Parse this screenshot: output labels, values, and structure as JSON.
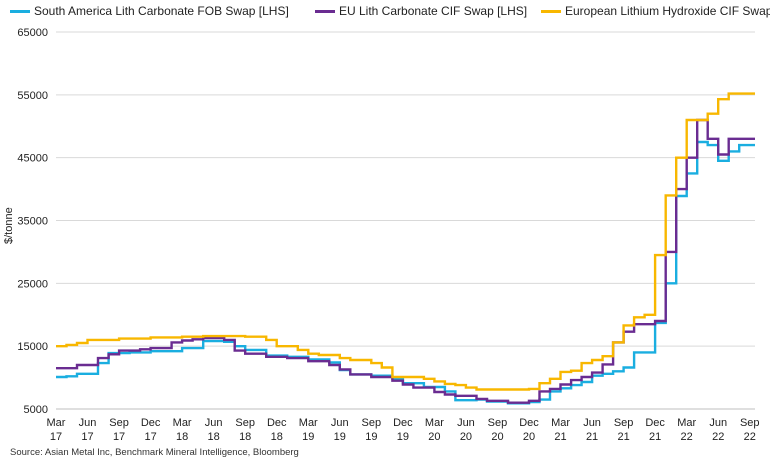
{
  "chart_data": {
    "type": "line",
    "title": "",
    "xlabel": "",
    "ylabel": "$/tonne",
    "ylim": [
      5000,
      65000
    ],
    "yticks": [
      5000,
      15000,
      25000,
      35000,
      45000,
      55000,
      65000
    ],
    "ytick_labels": [
      "5000",
      "15000",
      "25000",
      "35000",
      "45000",
      "55000",
      "65000"
    ],
    "x_range_months": [
      0,
      66.5
    ],
    "x_ticks": [
      {
        "month": 0,
        "line1": "Mar",
        "line2": "17"
      },
      {
        "month": 3,
        "line1": "Jun",
        "line2": "17"
      },
      {
        "month": 6,
        "line1": "Sep",
        "line2": "17"
      },
      {
        "month": 9,
        "line1": "Dec",
        "line2": "17"
      },
      {
        "month": 12,
        "line1": "Mar",
        "line2": "18"
      },
      {
        "month": 15,
        "line1": "Jun",
        "line2": "18"
      },
      {
        "month": 18,
        "line1": "Sep",
        "line2": "18"
      },
      {
        "month": 21,
        "line1": "Dec",
        "line2": "18"
      },
      {
        "month": 24,
        "line1": "Mar",
        "line2": "19"
      },
      {
        "month": 27,
        "line1": "Jun",
        "line2": "19"
      },
      {
        "month": 30,
        "line1": "Sep",
        "line2": "19"
      },
      {
        "month": 33,
        "line1": "Dec",
        "line2": "19"
      },
      {
        "month": 36,
        "line1": "Mar",
        "line2": "20"
      },
      {
        "month": 39,
        "line1": "Jun",
        "line2": "20"
      },
      {
        "month": 42,
        "line1": "Sep",
        "line2": "20"
      },
      {
        "month": 45,
        "line1": "Dec",
        "line2": "20"
      },
      {
        "month": 48,
        "line1": "Mar",
        "line2": "21"
      },
      {
        "month": 51,
        "line1": "Jun",
        "line2": "21"
      },
      {
        "month": 54,
        "line1": "Sep",
        "line2": "21"
      },
      {
        "month": 57,
        "line1": "Dec",
        "line2": "21"
      },
      {
        "month": 60,
        "line1": "Mar",
        "line2": "22"
      },
      {
        "month": 63,
        "line1": "Jun",
        "line2": "22"
      },
      {
        "month": 66,
        "line1": "Sep",
        "line2": "22"
      }
    ],
    "legend_position": "top",
    "series": [
      {
        "name": "South America Lith Carbonate FOB Swap [LHS]",
        "color": "#1aaee0",
        "step": true,
        "points": [
          [
            0,
            10100
          ],
          [
            1,
            10200
          ],
          [
            2,
            10600
          ],
          [
            4,
            12300
          ],
          [
            5,
            13900
          ],
          [
            7,
            14000
          ],
          [
            9,
            14200
          ],
          [
            12,
            14700
          ],
          [
            14,
            15800
          ],
          [
            16,
            15700
          ],
          [
            17,
            15000
          ],
          [
            18,
            14400
          ],
          [
            20,
            13500
          ],
          [
            22,
            13300
          ],
          [
            24,
            12900
          ],
          [
            26,
            12400
          ],
          [
            27,
            11200
          ],
          [
            28,
            10500
          ],
          [
            30,
            10300
          ],
          [
            32,
            9800
          ],
          [
            33,
            9100
          ],
          [
            35,
            8500
          ],
          [
            37,
            7800
          ],
          [
            38,
            6400
          ],
          [
            40,
            6500
          ],
          [
            41,
            6200
          ],
          [
            43,
            5900
          ],
          [
            45,
            6100
          ],
          [
            46,
            6500
          ],
          [
            47,
            7800
          ],
          [
            48,
            8300
          ],
          [
            49,
            8800
          ],
          [
            50,
            9300
          ],
          [
            51,
            10300
          ],
          [
            52,
            10600
          ],
          [
            53,
            11000
          ],
          [
            54,
            11600
          ],
          [
            55,
            14000
          ],
          [
            57,
            18700
          ],
          [
            58,
            25000
          ],
          [
            59,
            38900
          ],
          [
            60,
            42500
          ],
          [
            61,
            47500
          ],
          [
            62,
            47000
          ],
          [
            63,
            44500
          ],
          [
            64,
            46000
          ],
          [
            65,
            47000
          ],
          [
            66.5,
            47000
          ]
        ]
      },
      {
        "name": "EU Lith Carbonate CIF Swap [LHS]",
        "color": "#6a2c91",
        "step": true,
        "points": [
          [
            0,
            11500
          ],
          [
            2,
            12000
          ],
          [
            4,
            13100
          ],
          [
            5,
            13700
          ],
          [
            6,
            14300
          ],
          [
            8,
            14500
          ],
          [
            9,
            14700
          ],
          [
            11,
            15600
          ],
          [
            12,
            15900
          ],
          [
            13,
            16100
          ],
          [
            14,
            16300
          ],
          [
            16,
            16000
          ],
          [
            17,
            14300
          ],
          [
            18,
            13800
          ],
          [
            20,
            13300
          ],
          [
            22,
            13100
          ],
          [
            24,
            12600
          ],
          [
            26,
            12000
          ],
          [
            27,
            11300
          ],
          [
            28,
            10500
          ],
          [
            30,
            10100
          ],
          [
            32,
            9500
          ],
          [
            33,
            8900
          ],
          [
            34,
            8400
          ],
          [
            36,
            7700
          ],
          [
            37,
            7300
          ],
          [
            38,
            7100
          ],
          [
            40,
            6600
          ],
          [
            41,
            6300
          ],
          [
            43,
            6000
          ],
          [
            45,
            6300
          ],
          [
            46,
            7800
          ],
          [
            47,
            8200
          ],
          [
            48,
            8900
          ],
          [
            49,
            9600
          ],
          [
            50,
            10100
          ],
          [
            51,
            10800
          ],
          [
            52,
            12100
          ],
          [
            53,
            15600
          ],
          [
            54,
            17300
          ],
          [
            55,
            18500
          ],
          [
            57,
            19000
          ],
          [
            58,
            30000
          ],
          [
            59,
            40000
          ],
          [
            60,
            45000
          ],
          [
            61,
            51000
          ],
          [
            62,
            48000
          ],
          [
            63,
            45500
          ],
          [
            64,
            48000
          ],
          [
            66.5,
            48000
          ]
        ]
      },
      {
        "name": "European Lithium Hydroxide CIF Swap",
        "color": "#f8b700",
        "step": true,
        "points": [
          [
            0,
            15000
          ],
          [
            1,
            15200
          ],
          [
            2,
            15500
          ],
          [
            3,
            16000
          ],
          [
            6,
            16200
          ],
          [
            9,
            16400
          ],
          [
            12,
            16500
          ],
          [
            14,
            16600
          ],
          [
            16,
            16600
          ],
          [
            18,
            16500
          ],
          [
            20,
            16000
          ],
          [
            21,
            15000
          ],
          [
            23,
            14400
          ],
          [
            24,
            13800
          ],
          [
            25,
            13600
          ],
          [
            27,
            13100
          ],
          [
            28,
            12800
          ],
          [
            30,
            12300
          ],
          [
            31,
            11600
          ],
          [
            32,
            10100
          ],
          [
            35,
            9800
          ],
          [
            36,
            9400
          ],
          [
            37,
            9000
          ],
          [
            38,
            8800
          ],
          [
            39,
            8400
          ],
          [
            40,
            8100
          ],
          [
            45,
            8200
          ],
          [
            46,
            9100
          ],
          [
            47,
            9800
          ],
          [
            48,
            10900
          ],
          [
            49,
            11100
          ],
          [
            50,
            12300
          ],
          [
            51,
            12800
          ],
          [
            52,
            13400
          ],
          [
            53,
            15600
          ],
          [
            54,
            18300
          ],
          [
            55,
            19600
          ],
          [
            56,
            20000
          ],
          [
            57,
            29500
          ],
          [
            58,
            39000
          ],
          [
            59,
            45000
          ],
          [
            60,
            51000
          ],
          [
            61,
            51000
          ],
          [
            62,
            52000
          ],
          [
            63,
            54300
          ],
          [
            64,
            55200
          ],
          [
            66.5,
            55200
          ]
        ]
      }
    ]
  },
  "source_text": "Source: Asian Metal Inc, Benchmark Mineral Intelligence, Bloomberg"
}
